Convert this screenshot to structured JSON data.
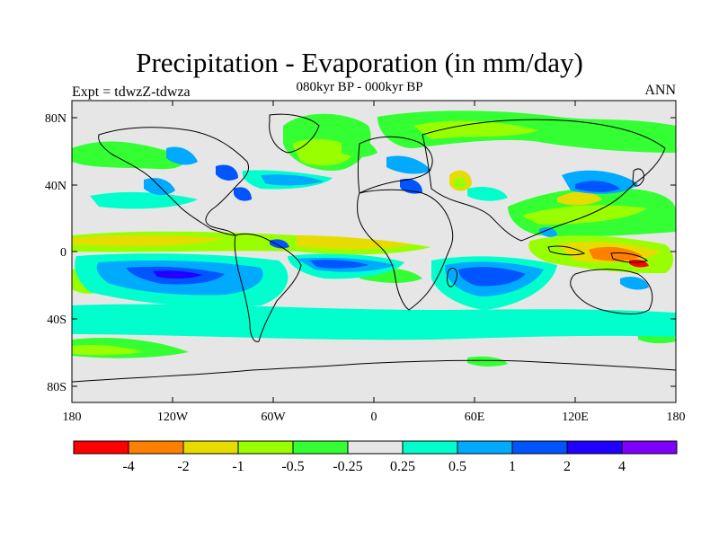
{
  "map": {
    "title": "Precipitation - Evaporation (in mm/day)",
    "subtitle": "080kyr BP - 000kyr BP",
    "left_label": "Expt = tdwzZ-tdwza",
    "right_label": "ANN",
    "lat_ticks": [
      "80N",
      "40N",
      "0",
      "40S",
      "80S"
    ],
    "lon_ticks": [
      "180",
      "120W",
      "60W",
      "0",
      "60E",
      "120E",
      "180"
    ],
    "background_color": "#e6e6e6",
    "coastline_color": "#000000"
  },
  "colorbar": {
    "colors": [
      "#ff0000",
      "#ff7f00",
      "#e6dc00",
      "#99ff00",
      "#33ff33",
      "#e6e6e6",
      "#00ffcc",
      "#00aaff",
      "#0055ff",
      "#2200ff",
      "#8000ff"
    ],
    "labels": [
      "-4",
      "-2",
      "-1",
      "-0.5",
      "-0.25",
      "0.25",
      "0.5",
      "1",
      "2",
      "4"
    ]
  }
}
